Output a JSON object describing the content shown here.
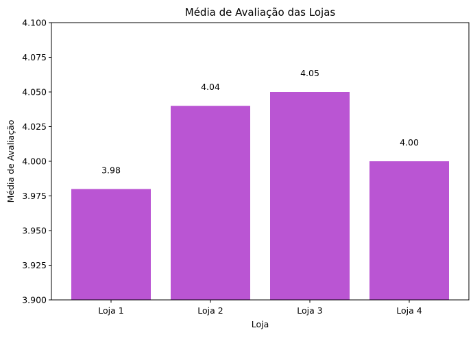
{
  "chart_data": {
    "type": "bar",
    "title": "Média de Avaliação das Lojas",
    "xlabel": "Loja",
    "ylabel": "Média de Avaliação",
    "categories": [
      "Loja 1",
      "Loja 2",
      "Loja 3",
      "Loja 4"
    ],
    "values": [
      3.98,
      4.04,
      4.05,
      4.0
    ],
    "value_labels": [
      "3.98",
      "4.04",
      "4.05",
      "4.00"
    ],
    "ylim": [
      3.9,
      4.1
    ],
    "yticks": [
      3.9,
      3.925,
      3.95,
      3.975,
      4.0,
      4.025,
      4.05,
      4.075,
      4.1
    ],
    "ytick_labels": [
      "3.900",
      "3.925",
      "3.950",
      "3.975",
      "4.000",
      "4.025",
      "4.050",
      "4.075",
      "4.100"
    ],
    "grid": false,
    "bar_color": "#ba55d3"
  }
}
